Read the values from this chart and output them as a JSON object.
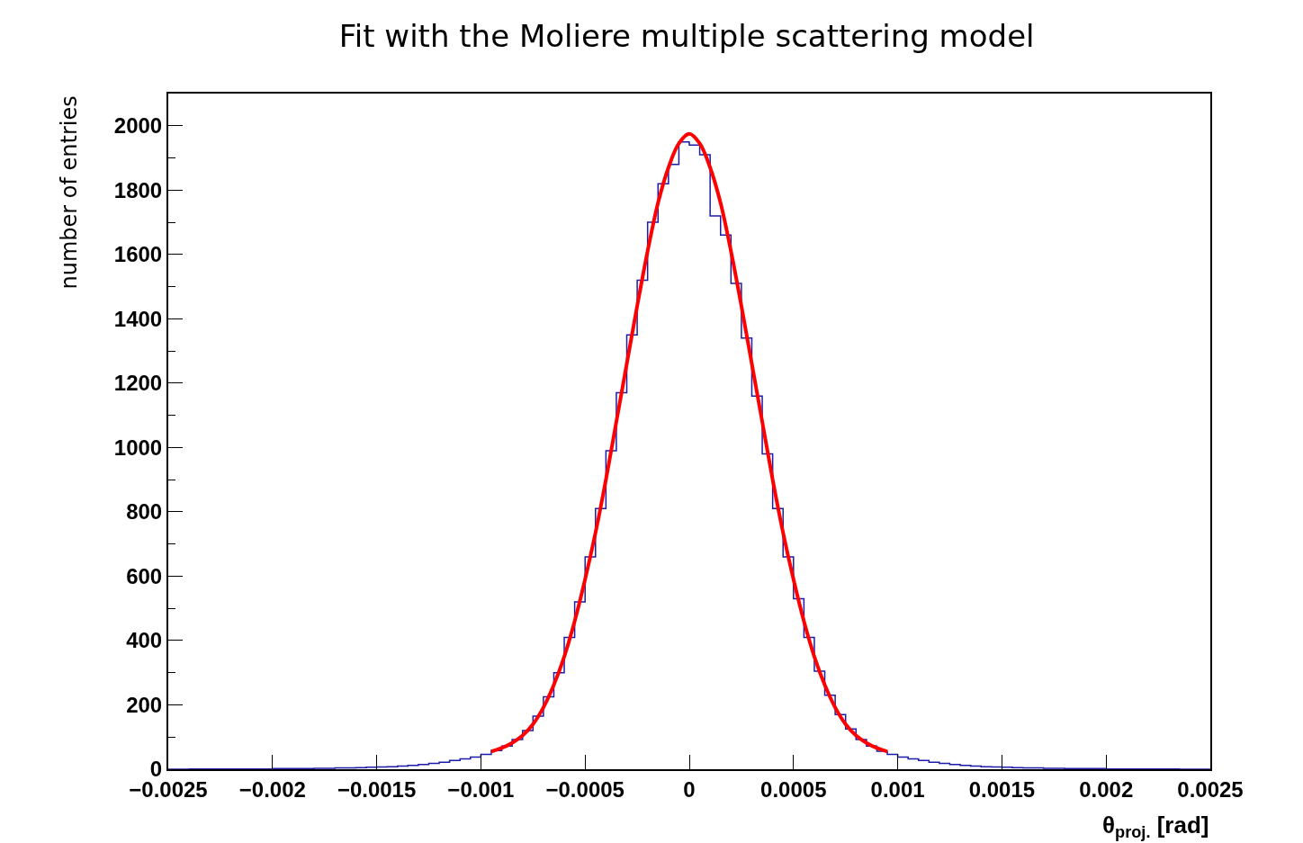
{
  "chart_data": {
    "type": "histogram",
    "title": "Fit with the Moliere multiple scattering model",
    "xlabel": "θ$_{proj.}$ [rad]",
    "ylabel": "number of entries",
    "xlim": [
      -0.0025,
      0.0025
    ],
    "ylim": [
      0,
      2100
    ],
    "xticks": [
      {
        "value": -0.0025,
        "label": "−0.0025"
      },
      {
        "value": -0.002,
        "label": "−0.002"
      },
      {
        "value": -0.0015,
        "label": "−0.0015"
      },
      {
        "value": -0.001,
        "label": "−0.001"
      },
      {
        "value": -0.0005,
        "label": "−0.0005"
      },
      0,
      0.0005,
      0.001,
      0.0015,
      0.002,
      0.0025
    ],
    "yticks": [
      0,
      200,
      400,
      600,
      800,
      1000,
      1200,
      1400,
      1600,
      1800,
      2000
    ],
    "series": [
      {
        "color": "#1c1ca8",
        "bins": [
          -0.0025,
          -0.00245,
          -0.0024,
          -0.00235,
          -0.0023,
          -0.00225,
          -0.0022,
          -0.00215,
          -0.0021,
          -0.00205,
          -0.002,
          -0.00195,
          -0.0019,
          -0.00185,
          -0.0018,
          -0.00175,
          -0.0017,
          -0.00165,
          -0.0016,
          -0.00155,
          -0.0015,
          -0.00145,
          -0.0014,
          -0.00135,
          -0.0013,
          -0.00125,
          -0.0012,
          -0.00115,
          -0.0011,
          -0.00105,
          -0.001,
          -0.00095,
          -0.0009,
          -0.00085,
          -0.0008,
          -0.00075,
          -0.0007,
          -0.00065,
          -0.0006,
          -0.00055,
          -0.0005,
          -0.00045,
          -0.0004,
          -0.00035,
          -0.0003,
          -0.00025,
          -0.0002,
          -0.00015,
          -0.0001,
          -5e-05,
          0,
          5e-05,
          0.0001,
          0.00015,
          0.0002,
          0.00025,
          0.0003,
          0.00035,
          0.0004,
          0.00045,
          0.0005,
          0.00055,
          0.0006,
          0.00065,
          0.0007,
          0.00075,
          0.0008,
          0.00085,
          0.0009,
          0.00095,
          0.001,
          0.00105,
          0.0011,
          0.00115,
          0.0012,
          0.00125,
          0.0013,
          0.00135,
          0.0014,
          0.00145,
          0.0015,
          0.00155,
          0.0016,
          0.00165,
          0.0017,
          0.00175,
          0.0018,
          0.00185,
          0.0019,
          0.00195,
          0.002,
          0.00205,
          0.0021,
          0.00215,
          0.0022,
          0.00225,
          0.0023,
          0.00235,
          0.0024,
          0.00245,
          0.0025
        ],
        "values": [
          0,
          0,
          1,
          1,
          1,
          1,
          1,
          1,
          1,
          1,
          2,
          2,
          2,
          2,
          3,
          3,
          4,
          4,
          5,
          6,
          7,
          8,
          10,
          12,
          15,
          18,
          22,
          27,
          32,
          38,
          46,
          58,
          72,
          92,
          120,
          165,
          225,
          300,
          410,
          520,
          660,
          810,
          990,
          1170,
          1350,
          1520,
          1700,
          1820,
          1880,
          1950,
          1940,
          1910,
          1720,
          1660,
          1510,
          1340,
          1160,
          980,
          810,
          660,
          530,
          410,
          305,
          230,
          170,
          125,
          92,
          72,
          56,
          46,
          38,
          32,
          27,
          22,
          18,
          15,
          12,
          10,
          8,
          7,
          6,
          5,
          4,
          4,
          3,
          3,
          2,
          2,
          2,
          2,
          1,
          1,
          1,
          1,
          1,
          1,
          1,
          0,
          0,
          0
        ]
      },
      {
        "type": "line",
        "color": "#ff0000",
        "x": [
          -0.00095,
          -0.0009,
          -0.00085,
          -0.0008,
          -0.00075,
          -0.0007,
          -0.00065,
          -0.0006,
          -0.00055,
          -0.0005,
          -0.00045,
          -0.0004,
          -0.00035,
          -0.0003,
          -0.00025,
          -0.0002,
          -0.00015,
          -0.0001,
          -5e-05,
          0,
          5e-05,
          0.0001,
          0.00015,
          0.0002,
          0.00025,
          0.0003,
          0.00035,
          0.0004,
          0.00045,
          0.0005,
          0.00055,
          0.0006,
          0.00065,
          0.0007,
          0.00075,
          0.0008,
          0.00085,
          0.0009,
          0.00095
        ],
        "values": [
          55,
          66,
          82,
          105,
          140,
          192,
          262,
          350,
          460,
          590,
          735,
          900,
          1080,
          1260,
          1440,
          1610,
          1760,
          1870,
          1945,
          1975,
          1945,
          1870,
          1760,
          1610,
          1440,
          1260,
          1080,
          900,
          735,
          590,
          460,
          350,
          262,
          192,
          140,
          105,
          82,
          66,
          55
        ]
      }
    ]
  }
}
